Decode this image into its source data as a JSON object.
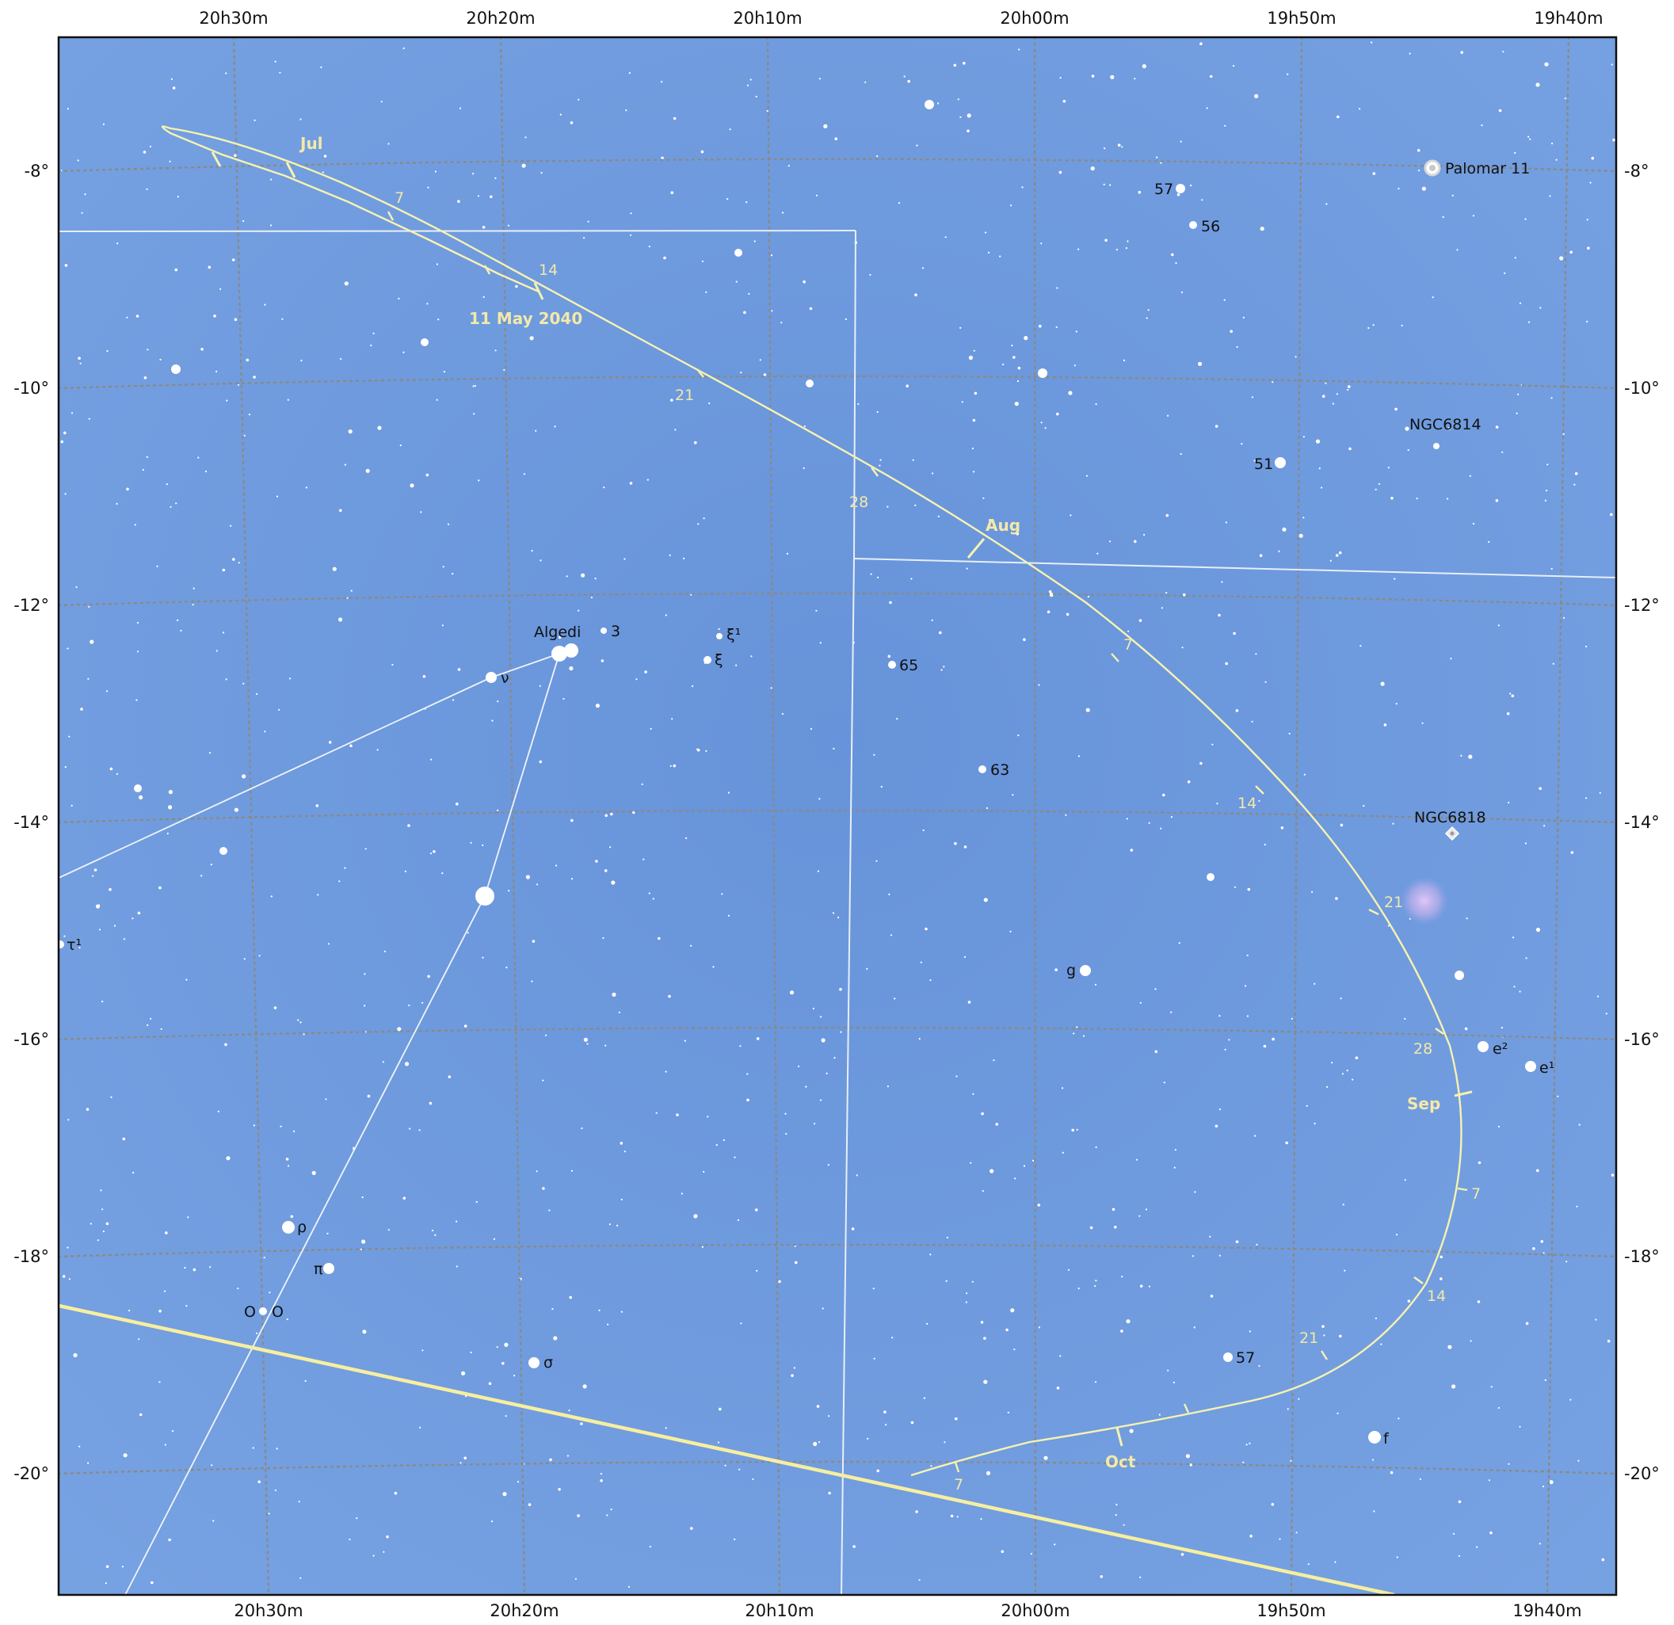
{
  "chart": {
    "ra_labels": [
      "20h30m",
      "20h20m",
      "20h10m",
      "20h00m",
      "19h50m",
      "19h40m"
    ],
    "dec_labels": [
      "-8°",
      "-10°",
      "-12°",
      "-14°",
      "-16°",
      "-18°",
      "-20°"
    ],
    "stars": [
      {
        "name": "Algedi",
        "mag": "bright"
      },
      {
        "name": "3"
      },
      {
        "name": "ξ¹"
      },
      {
        "name": "ξ"
      },
      {
        "name": "ν"
      },
      {
        "name": "65"
      },
      {
        "name": "63"
      },
      {
        "name": "57"
      },
      {
        "name": "56"
      },
      {
        "name": "51"
      },
      {
        "name": "g"
      },
      {
        "name": "e²"
      },
      {
        "name": "e¹"
      },
      {
        "name": "57"
      },
      {
        "name": "f"
      },
      {
        "name": "ρ"
      },
      {
        "name": "π"
      },
      {
        "name": "O"
      },
      {
        "name": "O"
      },
      {
        "name": "σ"
      },
      {
        "name": "τ¹"
      }
    ],
    "deep_sky": [
      {
        "name": "Palomar 11",
        "type": "globular-cluster"
      },
      {
        "name": "NGC6814",
        "type": "galaxy"
      },
      {
        "name": "NGC6818",
        "type": "planetary-nebula"
      }
    ],
    "comet_path": {
      "start_label": "11 May 2040",
      "months": [
        "Jul",
        "Aug",
        "Sep",
        "Oct"
      ],
      "day_ticks": [
        "7",
        "14",
        "21",
        "28",
        "7",
        "14",
        "21",
        "28",
        "7",
        "14",
        "21",
        "7"
      ]
    },
    "colors": {
      "sky": "#6a97dc",
      "path": "#f6f2b0",
      "boundary": "#e8eef8",
      "ecliptic": "#f7efa0",
      "grid": "#8a8a82"
    }
  }
}
